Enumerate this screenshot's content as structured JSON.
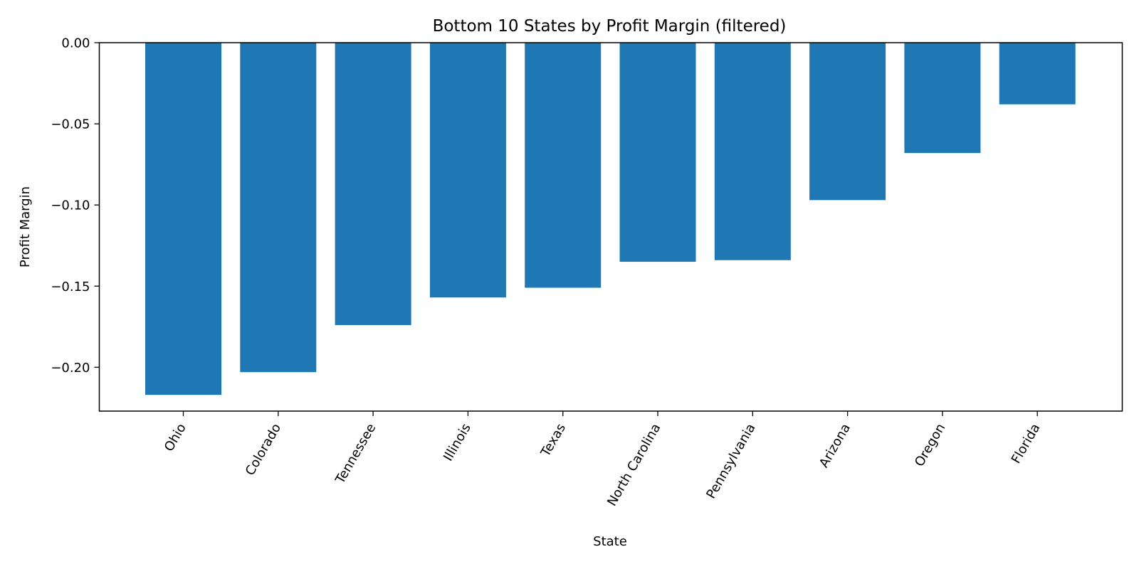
{
  "chart_data": {
    "type": "bar",
    "title": "Bottom 10 States by Profit Margin (filtered)",
    "xlabel": "State",
    "ylabel": "Profit Margin",
    "categories": [
      "Ohio",
      "Colorado",
      "Tennessee",
      "Illinois",
      "Texas",
      "North Carolina",
      "Pennsylvania",
      "Arizona",
      "Oregon",
      "Florida"
    ],
    "values": [
      -0.217,
      -0.203,
      -0.174,
      -0.157,
      -0.151,
      -0.135,
      -0.134,
      -0.097,
      -0.068,
      -0.038
    ],
    "ylim": [
      -0.227,
      0.0
    ],
    "yticks": [
      0.0,
      -0.05,
      -0.1,
      -0.15,
      -0.2
    ],
    "ytick_labels": [
      "0.00",
      "−0.05",
      "−0.10",
      "−0.15",
      "−0.20"
    ],
    "grid": false,
    "bar_color": "#1f77b4"
  }
}
